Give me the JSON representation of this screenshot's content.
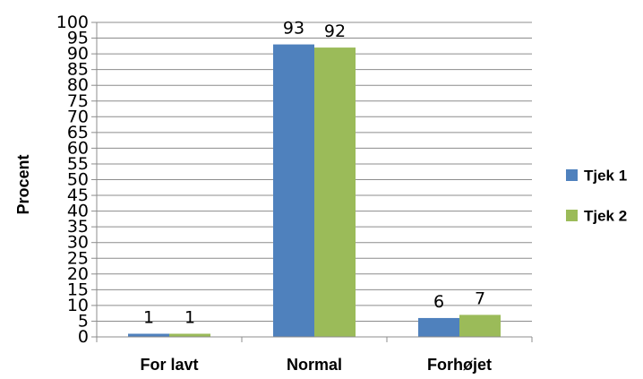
{
  "chart_data": {
    "type": "bar",
    "title": "",
    "xlabel": "",
    "ylabel": "Procent",
    "categories": [
      "For lavt",
      "Normal",
      "Forhøjet"
    ],
    "series": [
      {
        "name": "Tjek 1",
        "values": [
          1,
          93,
          6
        ],
        "color": "#4f81bd"
      },
      {
        "name": "Tjek 2",
        "values": [
          1,
          92,
          7
        ],
        "color": "#9bbb59"
      }
    ],
    "ylim": [
      0,
      100
    ],
    "yticks": [
      0,
      5,
      10,
      15,
      20,
      25,
      30,
      35,
      40,
      45,
      50,
      55,
      60,
      65,
      70,
      75,
      80,
      85,
      90,
      95,
      100
    ],
    "grid": true,
    "legend_position": "right",
    "data_labels": true
  }
}
